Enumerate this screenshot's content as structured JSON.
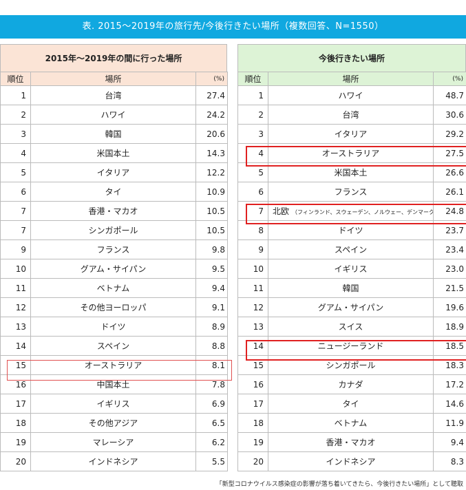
{
  "title": "表. 2015～2019年の旅行先/今後行きたい場所（複数回答、N=1550）",
  "colors": {
    "banner": "#10a8e0",
    "left_header": "#fbe4d6",
    "right_header": "#ddf3d6",
    "highlight": "#e02020"
  },
  "left": {
    "heading": "2015年～2019年の間に行った場所",
    "col_rank": "順位",
    "col_place": "場所",
    "col_pct": "(%)",
    "rows": [
      {
        "rank": "1",
        "place": "台湾",
        "value": "27.4"
      },
      {
        "rank": "2",
        "place": "ハワイ",
        "value": "24.2"
      },
      {
        "rank": "3",
        "place": "韓国",
        "value": "20.6"
      },
      {
        "rank": "4",
        "place": "米国本土",
        "value": "14.3"
      },
      {
        "rank": "5",
        "place": "イタリア",
        "value": "12.2"
      },
      {
        "rank": "6",
        "place": "タイ",
        "value": "10.9"
      },
      {
        "rank": "7",
        "place": "香港・マカオ",
        "value": "10.5"
      },
      {
        "rank": "7",
        "place": "シンガポール",
        "value": "10.5"
      },
      {
        "rank": "9",
        "place": "フランス",
        "value": "9.8"
      },
      {
        "rank": "10",
        "place": "グアム・サイパン",
        "value": "9.5"
      },
      {
        "rank": "11",
        "place": "ベトナム",
        "value": "9.4"
      },
      {
        "rank": "12",
        "place": "その他ヨーロッパ",
        "value": "9.1"
      },
      {
        "rank": "13",
        "place": "ドイツ",
        "value": "8.9"
      },
      {
        "rank": "14",
        "place": "スペイン",
        "value": "8.8"
      },
      {
        "rank": "15",
        "place": "オーストラリア",
        "value": "8.1"
      },
      {
        "rank": "16",
        "place": "中国本土",
        "value": "7.8"
      },
      {
        "rank": "17",
        "place": "イギリス",
        "value": "6.9"
      },
      {
        "rank": "18",
        "place": "その他アジア",
        "value": "6.5"
      },
      {
        "rank": "19",
        "place": "マレーシア",
        "value": "6.2"
      },
      {
        "rank": "20",
        "place": "インドネシア",
        "value": "5.5"
      }
    ]
  },
  "right": {
    "heading": "今後行きたい場所",
    "col_rank": "順位",
    "col_place": "場所",
    "col_pct": "(%)",
    "rows": [
      {
        "rank": "1",
        "place": "ハワイ",
        "value": "48.7"
      },
      {
        "rank": "2",
        "place": "台湾",
        "value": "30.6"
      },
      {
        "rank": "3",
        "place": "イタリア",
        "value": "29.2"
      },
      {
        "rank": "4",
        "place": "オーストラリア",
        "value": "27.5"
      },
      {
        "rank": "5",
        "place": "米国本土",
        "value": "26.6"
      },
      {
        "rank": "6",
        "place": "フランス",
        "value": "26.1"
      },
      {
        "rank": "7",
        "place": "北欧",
        "sub": "（フィンランド、スウェーデン、ノルウェー、デンマーク）",
        "value": "24.8"
      },
      {
        "rank": "8",
        "place": "ドイツ",
        "value": "23.7"
      },
      {
        "rank": "9",
        "place": "スペイン",
        "value": "23.4"
      },
      {
        "rank": "10",
        "place": "イギリス",
        "value": "23.0"
      },
      {
        "rank": "11",
        "place": "韓国",
        "value": "21.5"
      },
      {
        "rank": "12",
        "place": "グアム・サイパン",
        "value": "19.6"
      },
      {
        "rank": "13",
        "place": "スイス",
        "value": "18.9"
      },
      {
        "rank": "14",
        "place": "ニュージーランド",
        "value": "18.5"
      },
      {
        "rank": "15",
        "place": "シンガポール",
        "value": "18.3"
      },
      {
        "rank": "16",
        "place": "カナダ",
        "value": "17.2"
      },
      {
        "rank": "17",
        "place": "タイ",
        "value": "14.6"
      },
      {
        "rank": "18",
        "place": "ベトナム",
        "value": "11.9"
      },
      {
        "rank": "19",
        "place": "香港・マカオ",
        "value": "9.4"
      },
      {
        "rank": "20",
        "place": "インドネシア",
        "value": "8.3"
      }
    ]
  },
  "footnote": "「新型コロナウイルス感染症の影響が落ち着いてきたら、今後行きたい場所」として聴取",
  "chart_data": [
    {
      "type": "table",
      "title": "2015年～2019年の間に行った場所",
      "columns": [
        "順位",
        "場所",
        "(%)"
      ],
      "categories": [
        "台湾",
        "ハワイ",
        "韓国",
        "米国本土",
        "イタリア",
        "タイ",
        "香港・マカオ",
        "シンガポール",
        "フランス",
        "グアム・サイパン",
        "ベトナム",
        "その他ヨーロッパ",
        "ドイツ",
        "スペイン",
        "オーストラリア",
        "中国本土",
        "イギリス",
        "その他アジア",
        "マレーシア",
        "インドネシア"
      ],
      "ranks": [
        1,
        2,
        3,
        4,
        5,
        6,
        7,
        7,
        9,
        10,
        11,
        12,
        13,
        14,
        15,
        16,
        17,
        18,
        19,
        20
      ],
      "values": [
        27.4,
        24.2,
        20.6,
        14.3,
        12.2,
        10.9,
        10.5,
        10.5,
        9.8,
        9.5,
        9.4,
        9.1,
        8.9,
        8.8,
        8.1,
        7.8,
        6.9,
        6.5,
        6.2,
        5.5
      ]
    },
    {
      "type": "table",
      "title": "今後行きたい場所",
      "columns": [
        "順位",
        "場所",
        "(%)"
      ],
      "categories": [
        "ハワイ",
        "台湾",
        "イタリア",
        "オーストラリア",
        "米国本土",
        "フランス",
        "北欧（フィンランド、スウェーデン、ノルウェー、デンマーク）",
        "ドイツ",
        "スペイン",
        "イギリス",
        "韓国",
        "グアム・サイパン",
        "スイス",
        "ニュージーランド",
        "シンガポール",
        "カナダ",
        "タイ",
        "ベトナム",
        "香港・マカオ",
        "インドネシア"
      ],
      "ranks": [
        1,
        2,
        3,
        4,
        5,
        6,
        7,
        8,
        9,
        10,
        11,
        12,
        13,
        14,
        15,
        16,
        17,
        18,
        19,
        20
      ],
      "values": [
        48.7,
        30.6,
        29.2,
        27.5,
        26.6,
        26.1,
        24.8,
        23.7,
        23.4,
        23.0,
        21.5,
        19.6,
        18.9,
        18.5,
        18.3,
        17.2,
        14.6,
        11.9,
        9.4,
        8.3
      ]
    }
  ]
}
